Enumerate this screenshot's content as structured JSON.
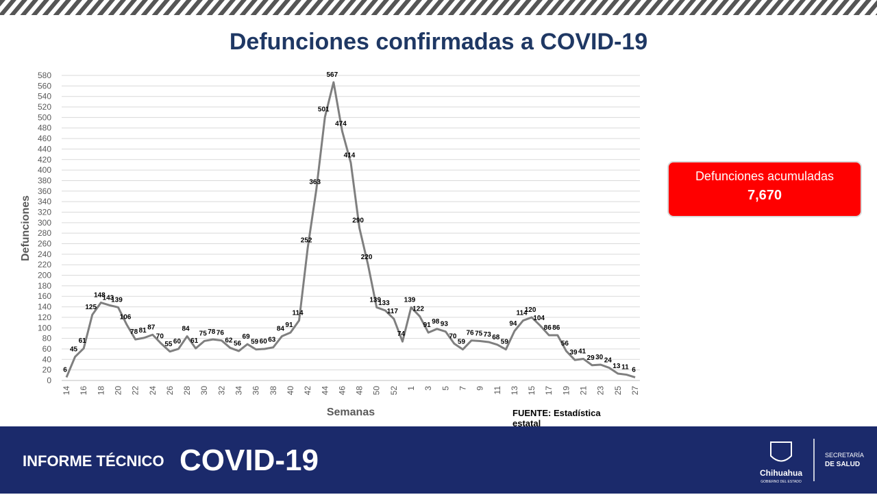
{
  "chart_data": {
    "type": "line",
    "title": "Defunciones confirmadas a COVID-19",
    "y_label": "Defunciones",
    "x_label": "Semanas",
    "source": "FUENTE: Estadística estatal",
    "categories": [
      "14",
      null,
      "16",
      null,
      "18",
      null,
      "20",
      null,
      "22",
      null,
      "24",
      null,
      "26",
      null,
      "28",
      null,
      "30",
      null,
      "32",
      null,
      "34",
      null,
      "36",
      null,
      "38",
      null,
      "40",
      null,
      "42",
      null,
      "44",
      null,
      "46",
      null,
      "48",
      null,
      "50",
      null,
      "52",
      null,
      "1",
      null,
      "3",
      null,
      "5",
      null,
      "7",
      null,
      "9",
      null,
      "11",
      null,
      "13",
      null,
      "15",
      null,
      "17",
      null,
      "19",
      null,
      "21",
      null,
      "23",
      null,
      "25",
      null,
      "27"
    ],
    "series": [
      {
        "name": "Defunciones",
        "color": "#7f7f7f",
        "values": [
          6,
          45,
          61,
          125,
          148,
          143,
          139,
          106,
          78,
          81,
          87,
          70,
          55,
          60,
          84,
          61,
          75,
          78,
          76,
          62,
          56,
          69,
          59,
          60,
          63,
          84,
          91,
          114,
          252,
          363,
          501,
          567,
          474,
          414,
          290,
          220,
          139,
          133,
          117,
          74,
          139,
          122,
          91,
          98,
          93,
          70,
          59,
          76,
          75,
          73,
          68,
          59,
          94,
          114,
          120,
          104,
          86,
          86,
          56,
          39,
          41,
          29,
          30,
          24,
          13,
          11,
          6
        ]
      }
    ],
    "ylim": [
      0,
      580
    ],
    "yticks": [
      0,
      20,
      40,
      60,
      80,
      100,
      120,
      140,
      160,
      180,
      200,
      220,
      240,
      260,
      280,
      300,
      320,
      340,
      360,
      380,
      400,
      420,
      440,
      460,
      480,
      500,
      520,
      540,
      560,
      580
    ],
    "grid": true
  },
  "summary": {
    "label": "Defunciones acumuladas",
    "value": "7,670"
  },
  "footer": {
    "left": "INFORME TÉCNICO",
    "right": "COVID-19",
    "state": "Chihuahua",
    "government": "GOBIERNO DEL ESTADO",
    "dept_1": "SECRETARÍA",
    "dept_2": "DE SALUD"
  }
}
